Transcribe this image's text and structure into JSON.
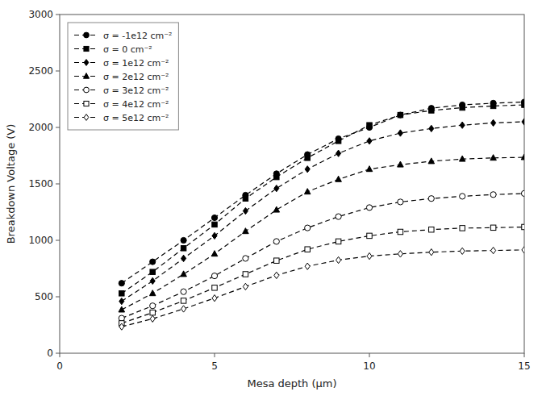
{
  "chart_data": {
    "type": "line",
    "xlabel": "Mesa depth (μm)",
    "ylabel": "Breakdown Voltage (V)",
    "xlim": [
      0,
      15
    ],
    "ylim": [
      0,
      3000
    ],
    "xticks": [
      0,
      5,
      10,
      15
    ],
    "yticks": [
      0,
      500,
      1000,
      1500,
      2000,
      2500,
      3000
    ],
    "grid": false,
    "legend": "upper left",
    "color": "#000000",
    "line_style": "dashed",
    "x": [
      2,
      3,
      4,
      5,
      6,
      7,
      8,
      9,
      10,
      11,
      12,
      13,
      14,
      15
    ],
    "series": [
      {
        "name": "σ = -1e12 cm⁻²",
        "marker": "circle",
        "values": [
          620,
          810,
          1000,
          1200,
          1400,
          1590,
          1760,
          1900,
          2000,
          2110,
          2170,
          2200,
          2215,
          2225
        ]
      },
      {
        "name": "σ = 0 cm⁻²",
        "marker": "square",
        "values": [
          530,
          720,
          930,
          1140,
          1370,
          1560,
          1730,
          1880,
          2020,
          2110,
          2150,
          2175,
          2190,
          2200
        ]
      },
      {
        "name": "σ = 1e12 cm⁻²",
        "marker": "diamond",
        "values": [
          460,
          640,
          840,
          1040,
          1260,
          1460,
          1630,
          1770,
          1880,
          1950,
          1990,
          2020,
          2040,
          2050
        ]
      },
      {
        "name": "σ = 2e12 cm⁻²",
        "marker": "triangle",
        "values": [
          385,
          530,
          700,
          880,
          1080,
          1270,
          1430,
          1540,
          1630,
          1670,
          1700,
          1720,
          1730,
          1735
        ]
      },
      {
        "name": "σ = 3e12 cm⁻²",
        "marker": "open-circle",
        "values": [
          310,
          420,
          545,
          685,
          840,
          990,
          1110,
          1210,
          1290,
          1340,
          1370,
          1390,
          1405,
          1415
        ]
      },
      {
        "name": "σ = 4e12 cm⁻²",
        "marker": "open-square",
        "values": [
          265,
          360,
          465,
          580,
          700,
          820,
          920,
          990,
          1040,
          1075,
          1095,
          1108,
          1112,
          1118
        ]
      },
      {
        "name": "σ = 5e12 cm⁻²",
        "marker": "open-diamond",
        "values": [
          235,
          305,
          393,
          488,
          590,
          690,
          770,
          825,
          860,
          880,
          895,
          905,
          910,
          915
        ]
      }
    ]
  }
}
